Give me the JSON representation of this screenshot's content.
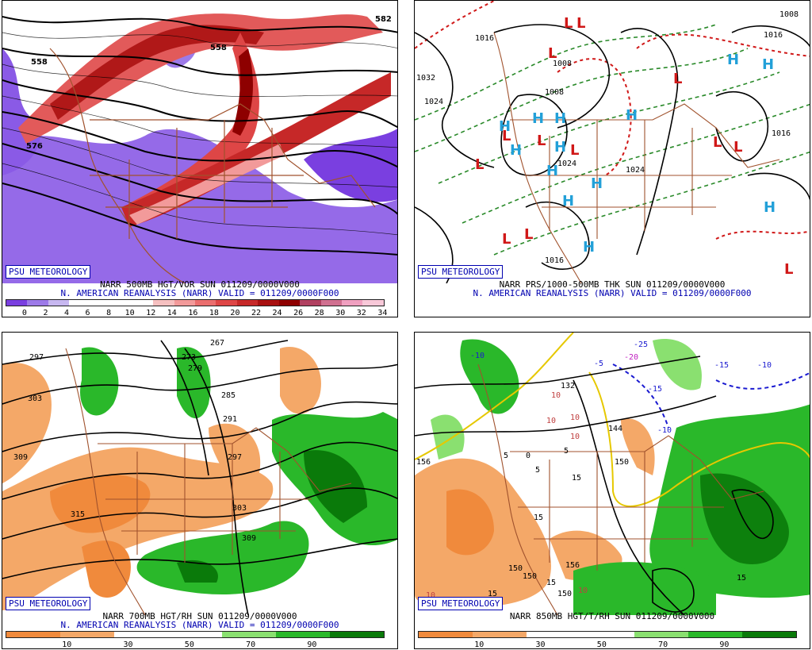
{
  "panels": [
    {
      "id": "500mb",
      "badge": "PSU METEOROLOGY",
      "caption1": "NARR 500MB HGT/VOR SUN 011209/0000V000",
      "caption2": "N. AMERICAN REANALYSIS (NARR) VALID = 011209/0000F000",
      "colorbar": {
        "colors": [
          "#7a3fe0",
          "#9d7ae8",
          "#c7b7f0",
          "#ffffff",
          "#ffffff",
          "#ffffff",
          "#ffffff",
          "#f6c0c0",
          "#f29a9a",
          "#ea6e6e",
          "#de4646",
          "#c62828",
          "#a81010",
          "#8e0000",
          "#b04060",
          "#d07090",
          "#f0a0c0",
          "#f8c8d8"
        ],
        "ticks": [
          "0",
          "2",
          "4",
          "6",
          "8",
          "10",
          "12",
          "14",
          "16",
          "18",
          "20",
          "22",
          "24",
          "26",
          "28",
          "30",
          "32",
          "34"
        ]
      },
      "contour_labels": [
        "558",
        "576",
        "558",
        "582"
      ]
    },
    {
      "id": "thk",
      "badge": "PSU METEOROLOGY",
      "caption1": "NARR PRS/1000-500MB THK SUN 011209/0000V000",
      "caption2": "N. AMERICAN REANALYSIS (NARR) VALID = 011209/0000F000",
      "isobar_labels": [
        "1008",
        "1032",
        "1024",
        "1016",
        "1008",
        "1016",
        "1016",
        "1008",
        "1016",
        "1024",
        "1024"
      ],
      "high_symbol": "H",
      "low_symbol": "L"
    },
    {
      "id": "700mb",
      "badge": "PSU METEOROLOGY",
      "caption1": "NARR 700MB HGT/RH SUN 011209/0000V000",
      "caption2": "N. AMERICAN REANALYSIS (NARR) VALID = 011209/0000F000",
      "colorbar": {
        "colors": [
          "#f08a3c",
          "#f4a868",
          "#ffffff",
          "#ffffff",
          "#8ae070",
          "#2ab82a",
          "#0a7a0a"
        ],
        "ticks": [
          "10",
          "30",
          "50",
          "70",
          "90"
        ]
      },
      "contour_labels": [
        "297",
        "303",
        "309",
        "315",
        "273",
        "279",
        "285",
        "291",
        "297",
        "303",
        "309",
        "267"
      ]
    },
    {
      "id": "850mb",
      "badge": "PSU METEOROLOGY",
      "caption1": "NARR 850MB HGT/T/RH SUN 011209/0000V000",
      "caption2": "",
      "colorbar": {
        "colors": [
          "#f08a3c",
          "#f4a868",
          "#ffffff",
          "#ffffff",
          "#8ae070",
          "#2ab82a",
          "#0a7a0a"
        ],
        "ticks": [
          "10",
          "30",
          "50",
          "70",
          "90"
        ]
      },
      "temp_labels": [
        "-10",
        "-5",
        "-20",
        "-25",
        "-15",
        "-15",
        "-10",
        "-10",
        "10",
        "10",
        "10",
        "0",
        "5",
        "5",
        "5",
        "15",
        "15",
        "15",
        "15",
        "15",
        "10",
        "10",
        "10"
      ],
      "height_labels": [
        "132",
        "144",
        "150",
        "150",
        "156",
        "150",
        "156",
        "150"
      ]
    }
  ]
}
